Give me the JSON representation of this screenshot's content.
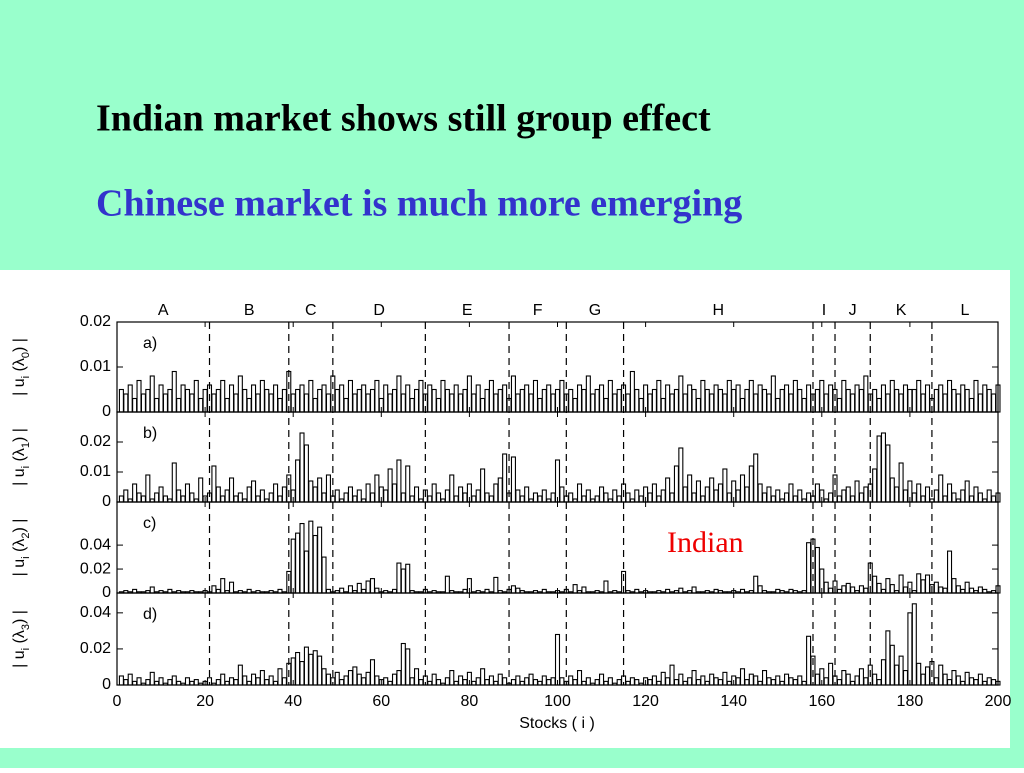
{
  "slide": {
    "title": "Indian market shows still group effect",
    "subtitle": "Chinese market is much more emerging"
  },
  "chart_data": {
    "type": "bar",
    "xlabel": "Stocks ( i )",
    "xlim": [
      0,
      200
    ],
    "xticks": [
      0,
      20,
      40,
      60,
      80,
      100,
      120,
      140,
      160,
      180,
      200
    ],
    "groups": [
      "A",
      "B",
      "C",
      "D",
      "E",
      "F",
      "G",
      "H",
      "I",
      "J",
      "K",
      "L"
    ],
    "dividers": [
      21,
      39,
      49,
      70,
      89,
      102,
      115,
      158,
      163,
      171,
      185
    ],
    "annotation": "Indian",
    "panels": [
      {
        "label": "a)",
        "ylabel_parts": [
          "| u",
          "i",
          " (λ",
          "0",
          ") |"
        ],
        "ylim": [
          0,
          0.02
        ],
        "yticks": [
          0,
          0.01,
          0.02
        ],
        "values": [
          0.005,
          0.004,
          0.006,
          0.003,
          0.007,
          0.004,
          0.005,
          0.008,
          0.003,
          0.006,
          0.004,
          0.005,
          0.009,
          0.003,
          0.006,
          0.005,
          0.004,
          0.007,
          0.003,
          0.005,
          0.006,
          0.004,
          0.005,
          0.007,
          0.003,
          0.006,
          0.004,
          0.008,
          0.005,
          0.003,
          0.006,
          0.004,
          0.007,
          0.005,
          0.004,
          0.006,
          0.003,
          0.005,
          0.009,
          0.004,
          0.005,
          0.006,
          0.004,
          0.007,
          0.003,
          0.005,
          0.006,
          0.004,
          0.008,
          0.005,
          0.006,
          0.003,
          0.007,
          0.004,
          0.005,
          0.006,
          0.004,
          0.005,
          0.007,
          0.003,
          0.006,
          0.004,
          0.005,
          0.008,
          0.004,
          0.006,
          0.003,
          0.005,
          0.007,
          0.004,
          0.006,
          0.005,
          0.003,
          0.007,
          0.005,
          0.004,
          0.006,
          0.004,
          0.005,
          0.008,
          0.004,
          0.006,
          0.003,
          0.005,
          0.007,
          0.004,
          0.005,
          0.006,
          0.003,
          0.008,
          0.004,
          0.005,
          0.006,
          0.004,
          0.007,
          0.003,
          0.005,
          0.006,
          0.004,
          0.005,
          0.007,
          0.004,
          0.005,
          0.003,
          0.006,
          0.005,
          0.008,
          0.004,
          0.005,
          0.006,
          0.003,
          0.007,
          0.004,
          0.005,
          0.006,
          0.004,
          0.009,
          0.005,
          0.003,
          0.006,
          0.004,
          0.005,
          0.007,
          0.003,
          0.006,
          0.004,
          0.005,
          0.008,
          0.004,
          0.006,
          0.005,
          0.003,
          0.007,
          0.005,
          0.004,
          0.006,
          0.005,
          0.004,
          0.007,
          0.005,
          0.006,
          0.003,
          0.005,
          0.007,
          0.004,
          0.006,
          0.005,
          0.004,
          0.008,
          0.003,
          0.005,
          0.006,
          0.004,
          0.007,
          0.005,
          0.003,
          0.006,
          0.004,
          0.005,
          0.007,
          0.004,
          0.006,
          0.005,
          0.003,
          0.007,
          0.005,
          0.004,
          0.006,
          0.005,
          0.008,
          0.004,
          0.005,
          0.003,
          0.006,
          0.004,
          0.007,
          0.005,
          0.004,
          0.006,
          0.005,
          0.005,
          0.007,
          0.004,
          0.006,
          0.003,
          0.005,
          0.006,
          0.004,
          0.007,
          0.005,
          0.004,
          0.006,
          0.005,
          0.003,
          0.007,
          0.004,
          0.006,
          0.005,
          0.004,
          0.006
        ]
      },
      {
        "label": "b)",
        "ylabel_parts": [
          "| u",
          "i",
          " (λ",
          "1",
          ") |"
        ],
        "ylim": [
          0,
          0.03
        ],
        "yticks": [
          0,
          0.01,
          0.02
        ],
        "values": [
          0.002,
          0.004,
          0.001,
          0.006,
          0.003,
          0.002,
          0.009,
          0.001,
          0.003,
          0.005,
          0.002,
          0.001,
          0.013,
          0.004,
          0.002,
          0.006,
          0.003,
          0.001,
          0.008,
          0.002,
          0.003,
          0.012,
          0.005,
          0.002,
          0.004,
          0.008,
          0.002,
          0.003,
          0.001,
          0.005,
          0.007,
          0.002,
          0.004,
          0.001,
          0.003,
          0.006,
          0.002,
          0.005,
          0.009,
          0.004,
          0.014,
          0.023,
          0.019,
          0.007,
          0.005,
          0.008,
          0.003,
          0.009,
          0.002,
          0.004,
          0.001,
          0.003,
          0.005,
          0.002,
          0.004,
          0.001,
          0.006,
          0.003,
          0.009,
          0.005,
          0.004,
          0.011,
          0.006,
          0.014,
          0.003,
          0.012,
          0.002,
          0.005,
          0.001,
          0.004,
          0.002,
          0.006,
          0.003,
          0.001,
          0.004,
          0.009,
          0.002,
          0.005,
          0.003,
          0.006,
          0.002,
          0.004,
          0.011,
          0.003,
          0.002,
          0.006,
          0.008,
          0.016,
          0.003,
          0.015,
          0.004,
          0.002,
          0.005,
          0.001,
          0.003,
          0.002,
          0.004,
          0.001,
          0.003,
          0.014,
          0.005,
          0.002,
          0.003,
          0.001,
          0.006,
          0.002,
          0.004,
          0.001,
          0.002,
          0.005,
          0.003,
          0.001,
          0.004,
          0.002,
          0.006,
          0.003,
          0.001,
          0.004,
          0.002,
          0.005,
          0.003,
          0.006,
          0.002,
          0.004,
          0.008,
          0.003,
          0.012,
          0.018,
          0.005,
          0.009,
          0.003,
          0.007,
          0.002,
          0.005,
          0.008,
          0.004,
          0.006,
          0.011,
          0.003,
          0.007,
          0.004,
          0.009,
          0.005,
          0.012,
          0.016,
          0.006,
          0.003,
          0.005,
          0.002,
          0.004,
          0.001,
          0.003,
          0.006,
          0.002,
          0.004,
          0.001,
          0.003,
          0.002,
          0.006,
          0.004,
          0.001,
          0.003,
          0.009,
          0.002,
          0.004,
          0.005,
          0.002,
          0.007,
          0.003,
          0.005,
          0.006,
          0.011,
          0.022,
          0.023,
          0.019,
          0.008,
          0.005,
          0.013,
          0.004,
          0.007,
          0.003,
          0.006,
          0.002,
          0.005,
          0.001,
          0.004,
          0.009,
          0.002,
          0.006,
          0.003,
          0.001,
          0.004,
          0.007,
          0.002,
          0.005,
          0.003,
          0.001,
          0.004,
          0.002,
          0.003
        ]
      },
      {
        "label": "c)",
        "ylabel_parts": [
          "| u",
          "i",
          " (λ",
          "2",
          ") |"
        ],
        "ylim": [
          0,
          0.076
        ],
        "yticks": [
          0,
          0.02,
          0.04
        ],
        "values": [
          0.001,
          0.002,
          0.001,
          0.003,
          0.001,
          0.001,
          0.002,
          0.005,
          0.001,
          0.002,
          0.001,
          0.003,
          0.001,
          0.002,
          0.001,
          0.001,
          0.002,
          0.001,
          0.001,
          0.002,
          0.001,
          0.006,
          0.003,
          0.012,
          0.002,
          0.009,
          0.001,
          0.002,
          0.001,
          0.003,
          0.001,
          0.002,
          0.001,
          0.001,
          0.002,
          0.001,
          0.003,
          0.001,
          0.018,
          0.045,
          0.05,
          0.058,
          0.035,
          0.06,
          0.048,
          0.055,
          0.03,
          0.003,
          0.001,
          0.002,
          0.004,
          0.001,
          0.006,
          0.002,
          0.008,
          0.003,
          0.01,
          0.012,
          0.004,
          0.001,
          0.002,
          0.001,
          0.003,
          0.025,
          0.02,
          0.024,
          0.002,
          0.001,
          0.001,
          0.003,
          0.001,
          0.002,
          0.001,
          0.001,
          0.014,
          0.002,
          0.001,
          0.001,
          0.003,
          0.012,
          0.001,
          0.002,
          0.001,
          0.003,
          0.001,
          0.013,
          0.002,
          0.001,
          0.003,
          0.006,
          0.004,
          0.002,
          0.001,
          0.001,
          0.002,
          0.001,
          0.003,
          0.001,
          0.001,
          0.002,
          0.001,
          0.003,
          0.001,
          0.007,
          0.002,
          0.005,
          0.001,
          0.001,
          0.002,
          0.001,
          0.01,
          0.001,
          0.002,
          0.001,
          0.018,
          0.002,
          0.001,
          0.003,
          0.001,
          0.002,
          0.001,
          0.001,
          0.002,
          0.001,
          0.003,
          0.001,
          0.002,
          0.004,
          0.001,
          0.002,
          0.005,
          0.001,
          0.001,
          0.002,
          0.001,
          0.003,
          0.002,
          0.001,
          0.001,
          0.002,
          0.001,
          0.003,
          0.001,
          0.002,
          0.014,
          0.006,
          0.002,
          0.001,
          0.001,
          0.003,
          0.002,
          0.001,
          0.003,
          0.002,
          0.001,
          0.002,
          0.042,
          0.045,
          0.038,
          0.02,
          0.009,
          0.004,
          0.01,
          0.003,
          0.006,
          0.008,
          0.005,
          0.002,
          0.006,
          0.004,
          0.025,
          0.014,
          0.008,
          0.003,
          0.012,
          0.007,
          0.002,
          0.015,
          0.005,
          0.009,
          0.002,
          0.016,
          0.011,
          0.015,
          0.007,
          0.009,
          0.005,
          0.004,
          0.035,
          0.012,
          0.006,
          0.003,
          0.009,
          0.004,
          0.002,
          0.005,
          0.003,
          0.001,
          0.002,
          0.006
        ]
      },
      {
        "label": "d)",
        "ylabel_parts": [
          "| u",
          "i",
          " (λ",
          "3",
          ") |"
        ],
        "ylim": [
          0,
          0.051
        ],
        "yticks": [
          0,
          0.02,
          0.04
        ],
        "values": [
          0.005,
          0.003,
          0.006,
          0.002,
          0.004,
          0.001,
          0.003,
          0.007,
          0.002,
          0.004,
          0.001,
          0.003,
          0.005,
          0.002,
          0.001,
          0.004,
          0.002,
          0.003,
          0.001,
          0.002,
          0.004,
          0.001,
          0.003,
          0.006,
          0.002,
          0.004,
          0.003,
          0.011,
          0.005,
          0.002,
          0.006,
          0.004,
          0.008,
          0.003,
          0.005,
          0.002,
          0.009,
          0.004,
          0.012,
          0.015,
          0.018,
          0.013,
          0.021,
          0.017,
          0.019,
          0.016,
          0.009,
          0.006,
          0.004,
          0.007,
          0.003,
          0.005,
          0.008,
          0.01,
          0.006,
          0.004,
          0.007,
          0.014,
          0.005,
          0.003,
          0.004,
          0.002,
          0.006,
          0.008,
          0.023,
          0.02,
          0.004,
          0.009,
          0.003,
          0.005,
          0.002,
          0.006,
          0.003,
          0.001,
          0.004,
          0.008,
          0.002,
          0.005,
          0.003,
          0.007,
          0.002,
          0.004,
          0.009,
          0.003,
          0.005,
          0.002,
          0.006,
          0.004,
          0.001,
          0.003,
          0.005,
          0.002,
          0.004,
          0.006,
          0.003,
          0.002,
          0.005,
          0.003,
          0.004,
          0.028,
          0.004,
          0.002,
          0.005,
          0.003,
          0.008,
          0.002,
          0.004,
          0.001,
          0.003,
          0.006,
          0.002,
          0.004,
          0.001,
          0.003,
          0.005,
          0.002,
          0.004,
          0.003,
          0.001,
          0.004,
          0.003,
          0.005,
          0.002,
          0.007,
          0.004,
          0.011,
          0.003,
          0.006,
          0.002,
          0.004,
          0.008,
          0.003,
          0.005,
          0.002,
          0.006,
          0.004,
          0.003,
          0.007,
          0.002,
          0.005,
          0.004,
          0.009,
          0.003,
          0.006,
          0.005,
          0.002,
          0.008,
          0.004,
          0.003,
          0.005,
          0.002,
          0.006,
          0.004,
          0.003,
          0.005,
          0.002,
          0.027,
          0.016,
          0.006,
          0.009,
          0.004,
          0.012,
          0.005,
          0.003,
          0.008,
          0.006,
          0.002,
          0.005,
          0.009,
          0.004,
          0.011,
          0.006,
          0.003,
          0.014,
          0.03,
          0.022,
          0.011,
          0.016,
          0.008,
          0.04,
          0.045,
          0.012,
          0.006,
          0.01,
          0.013,
          0.004,
          0.011,
          0.006,
          0.003,
          0.008,
          0.005,
          0.002,
          0.007,
          0.004,
          0.003,
          0.006,
          0.002,
          0.004,
          0.003,
          0.002
        ]
      }
    ]
  }
}
